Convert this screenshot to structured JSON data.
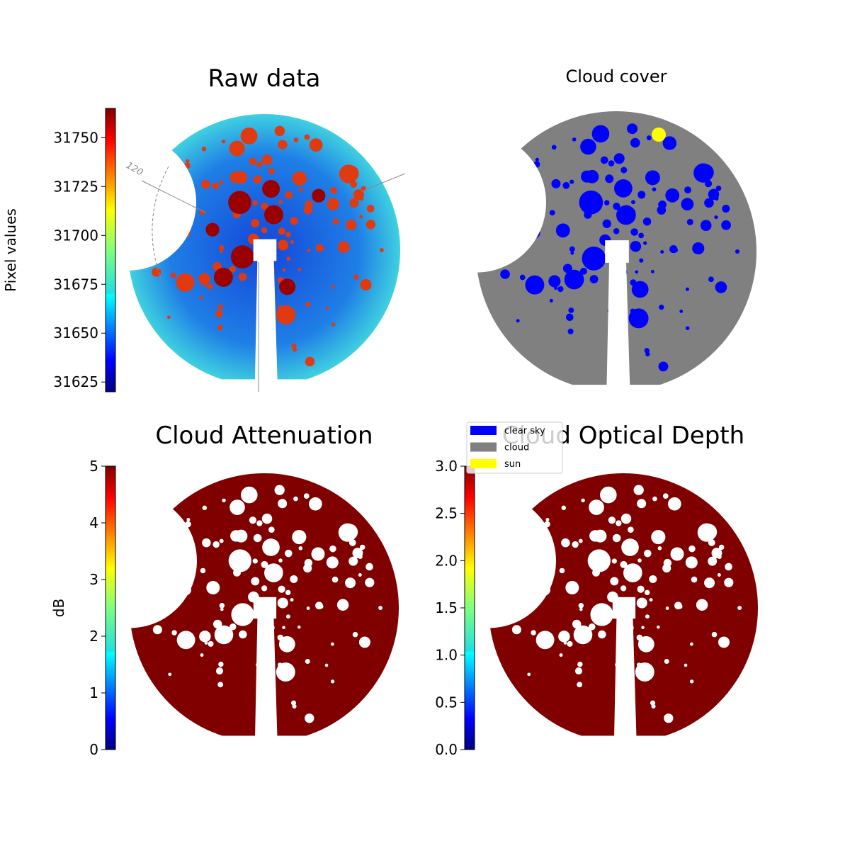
{
  "chart_data": [
    {
      "type": "image",
      "title": "Raw data",
      "ylabel": "Pixel values",
      "colormap": "jet",
      "ylim": [
        31620,
        31765
      ],
      "yticks": [
        31625,
        31650,
        31675,
        31700,
        31725,
        31750
      ],
      "annotations": [
        "120"
      ]
    },
    {
      "type": "image",
      "title": "Cloud cover",
      "legend": [
        {
          "name": "clear sky",
          "color": "#0000ff"
        },
        {
          "name": "cloud",
          "color": "#808080"
        },
        {
          "name": "sun",
          "color": "#ffff00"
        }
      ]
    },
    {
      "type": "image",
      "title": "Cloud Attenuation",
      "ylabel": "dB",
      "colormap": "jet",
      "ylim": [
        0,
        5
      ],
      "yticks": [
        0,
        1,
        2,
        3,
        4,
        5
      ]
    },
    {
      "type": "image",
      "title": "Cloud Optical Depth",
      "colormap": "jet",
      "ylim": [
        0,
        3
      ],
      "yticks": [
        {
          "value": 0,
          "label": "0.0"
        },
        0.5,
        {
          "value": 1,
          "label": "1.0"
        },
        1.5,
        {
          "value": 2,
          "label": "2.0"
        },
        2.5,
        {
          "value": 3,
          "label": "3.0"
        }
      ]
    }
  ]
}
